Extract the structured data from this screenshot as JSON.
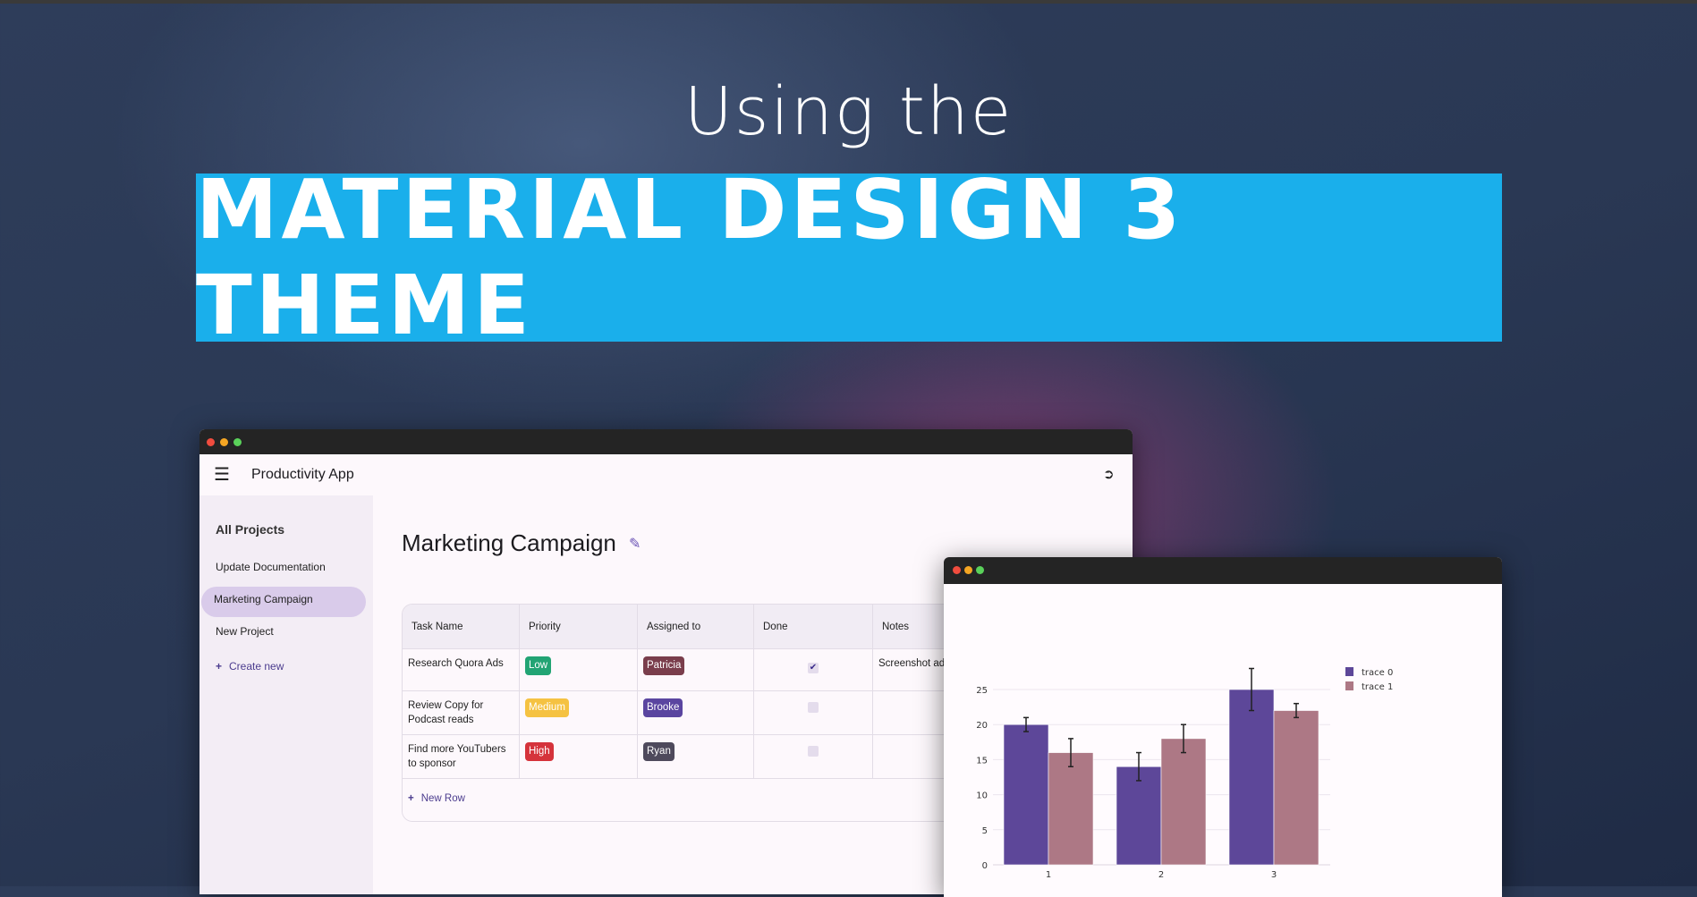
{
  "hero": {
    "subtitle": "Using the",
    "title": "MATERIAL DESIGN 3 THEME",
    "banner_color": "#1aafeb"
  },
  "window_controls": {
    "close": "#f04c3e",
    "minimize": "#f5a623",
    "zoom": "#5ad15a"
  },
  "app": {
    "title": "Productivity App",
    "menu_icon": "hamburger-icon",
    "logout_icon": "logout-icon",
    "sidebar": {
      "heading": "All Projects",
      "items": [
        {
          "label": "Update Documentation",
          "active": false
        },
        {
          "label": "Marketing Campaign",
          "active": true
        },
        {
          "label": "New Project",
          "active": false
        }
      ],
      "create_label": "Create new"
    },
    "project_title": "Marketing Campaign",
    "table": {
      "headers": [
        "Task Name",
        "Priority",
        "Assigned to",
        "Done",
        "Notes"
      ],
      "rows": [
        {
          "task": "Research Quora Ads",
          "priority": "Low",
          "priority_color": "#22a474",
          "assignee": "Patricia",
          "assignee_color": "#7a3e4c",
          "done": true,
          "notes": "Screenshot ad be most effect"
        },
        {
          "task": "Review Copy for Podcast reads",
          "priority": "Medium",
          "priority_color": "#f5c242",
          "assignee": "Brooke",
          "assignee_color": "#5a45a0",
          "done": false,
          "notes": ""
        },
        {
          "task": "Find more YouTubers to sponsor",
          "priority": "High",
          "priority_color": "#d5333b",
          "assignee": "Ryan",
          "assignee_color": "#4e4a5c",
          "done": false,
          "notes": ""
        }
      ],
      "new_row_label": "New Row"
    }
  },
  "chart_data": {
    "type": "bar",
    "categories": [
      "1",
      "2",
      "3"
    ],
    "series": [
      {
        "name": "trace 0",
        "values": [
          20,
          14,
          25
        ],
        "error": [
          1,
          2,
          3
        ],
        "color": "#5d4799"
      },
      {
        "name": "trace 1",
        "values": [
          16,
          18,
          22
        ],
        "error": [
          2,
          2,
          1
        ],
        "color": "#ad7885"
      }
    ],
    "yticks": [
      0,
      5,
      10,
      15,
      20,
      25
    ],
    "ylim": [
      0,
      28
    ],
    "grid": true,
    "legend": "top-right"
  }
}
